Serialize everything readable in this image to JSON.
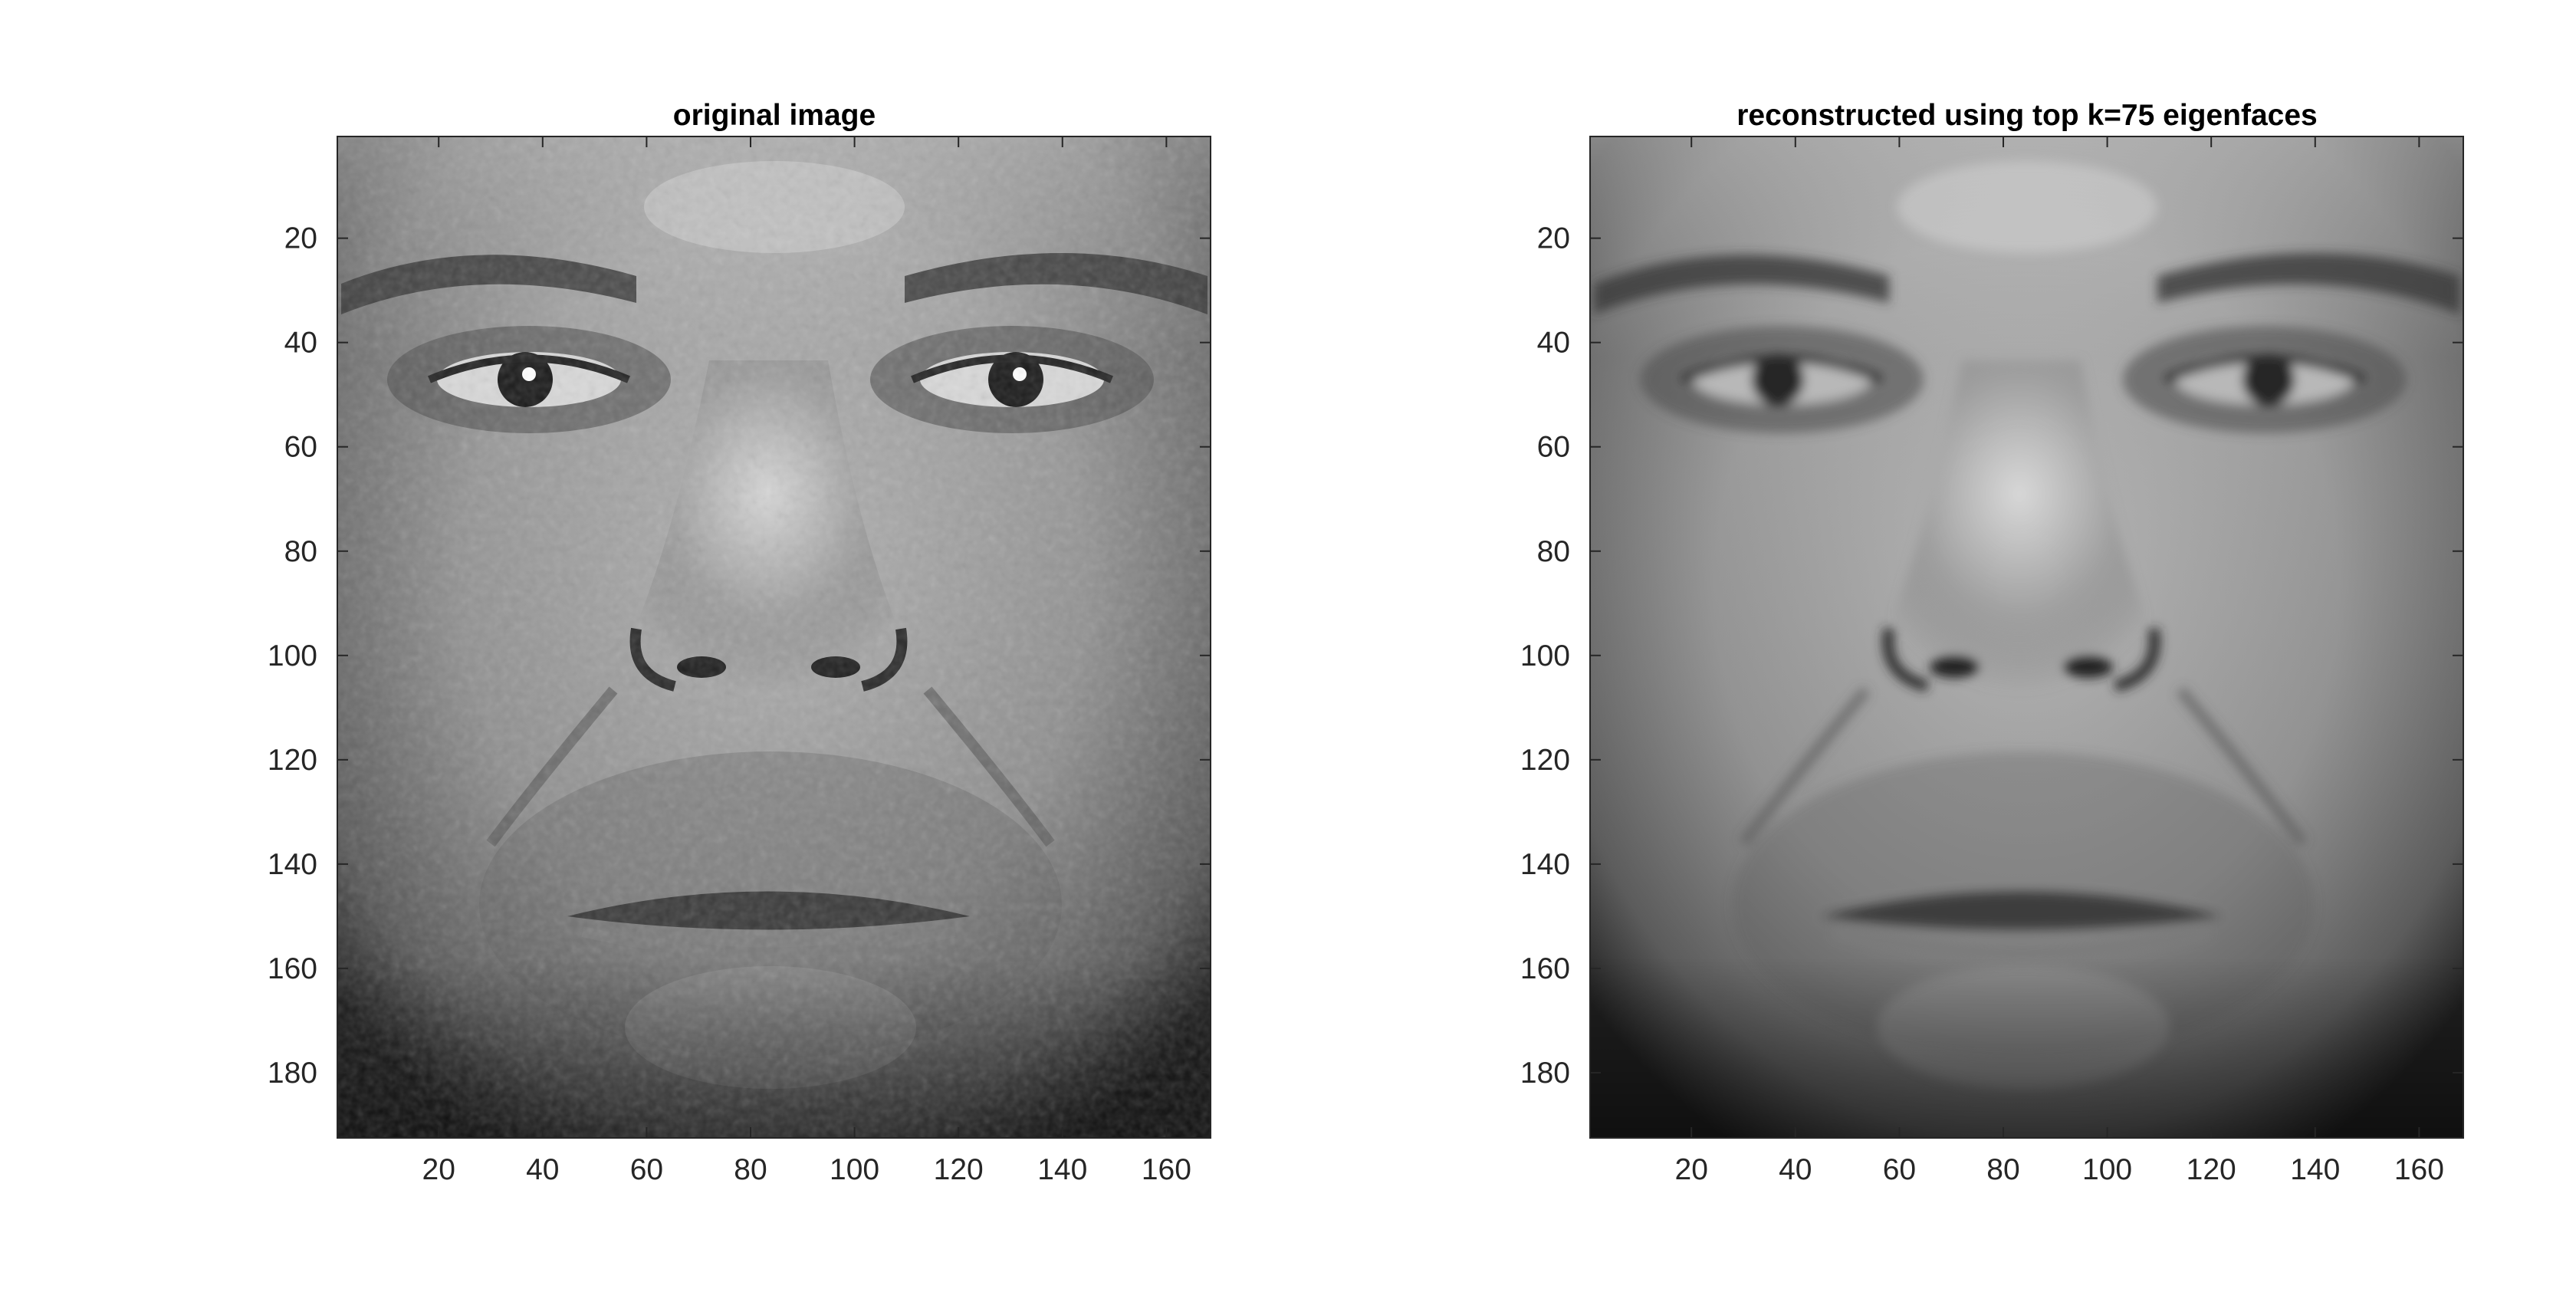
{
  "figure": {
    "panels": [
      {
        "title": "original image",
        "image": "grayscale frontal face photograph of a man, with sharp detail",
        "detail": "sharp",
        "x_ticks": [
          "20",
          "40",
          "60",
          "80",
          "100",
          "120",
          "140",
          "160"
        ],
        "y_ticks": [
          "20",
          "40",
          "60",
          "80",
          "100",
          "120",
          "140",
          "160",
          "180"
        ]
      },
      {
        "title": "reconstructed using top k=75 eigenfaces",
        "image": "grayscale reconstruction of the same face, slightly blurred",
        "detail": "blurred",
        "x_ticks": [
          "20",
          "40",
          "60",
          "80",
          "100",
          "120",
          "140",
          "160"
        ],
        "y_ticks": [
          "20",
          "40",
          "60",
          "80",
          "100",
          "120",
          "140",
          "160",
          "180"
        ]
      }
    ],
    "colors": {
      "background": "#ffffff",
      "axis": "#262626",
      "skin_light": "#cfcfcf",
      "skin_mid": "#8f8f8f",
      "skin_dark": "#2a2a2a"
    }
  }
}
